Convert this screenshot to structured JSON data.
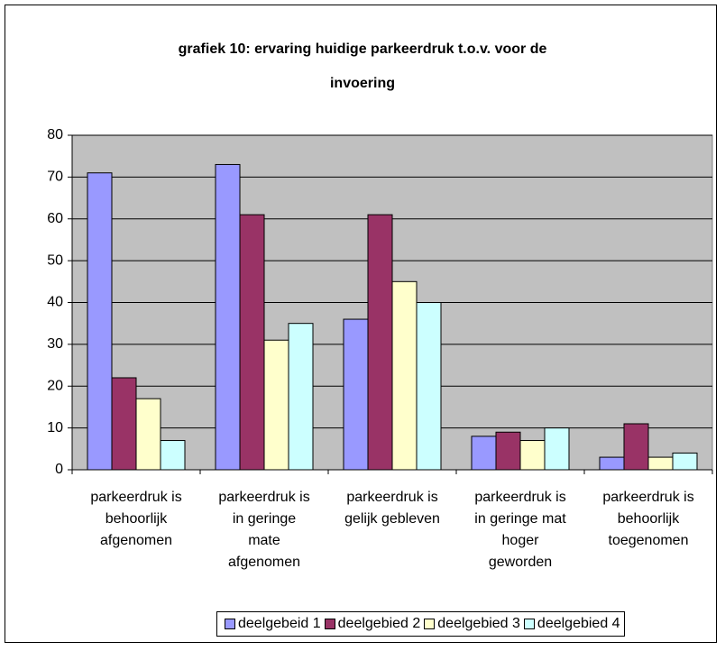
{
  "chart_data": {
    "type": "bar",
    "title": "grafiek 10: ervaring huidige parkeerdruk t.o.v. voor de invoering",
    "categories": [
      "parkeerdruk is\nbehoorlijk\nafgenomen",
      "parkeerdruk is\nin geringe\nmate\nafgenomen",
      "parkeerdruk is\ngelijk gebleven",
      "parkeerdruk is\nin geringe mat\nhoger\ngeworden",
      "parkeerdruk is\nbehoorlijk\ntoegenomen"
    ],
    "series": [
      {
        "name": "deelgebeid 1",
        "color": "#9999ff",
        "values": [
          71,
          73,
          36,
          8,
          3
        ]
      },
      {
        "name": "deelgebied 2",
        "color": "#993366",
        "values": [
          22,
          61,
          61,
          9,
          11
        ]
      },
      {
        "name": "deelgebied 3",
        "color": "#ffffcc",
        "values": [
          17,
          31,
          45,
          7,
          3
        ]
      },
      {
        "name": "deelgebied 4",
        "color": "#ccffff",
        "values": [
          7,
          35,
          40,
          10,
          4
        ]
      }
    ],
    "ylim": [
      0,
      80
    ],
    "yticks": [
      0,
      10,
      20,
      30,
      40,
      50,
      60,
      70,
      80
    ],
    "grid": true,
    "legend": "bottom"
  }
}
